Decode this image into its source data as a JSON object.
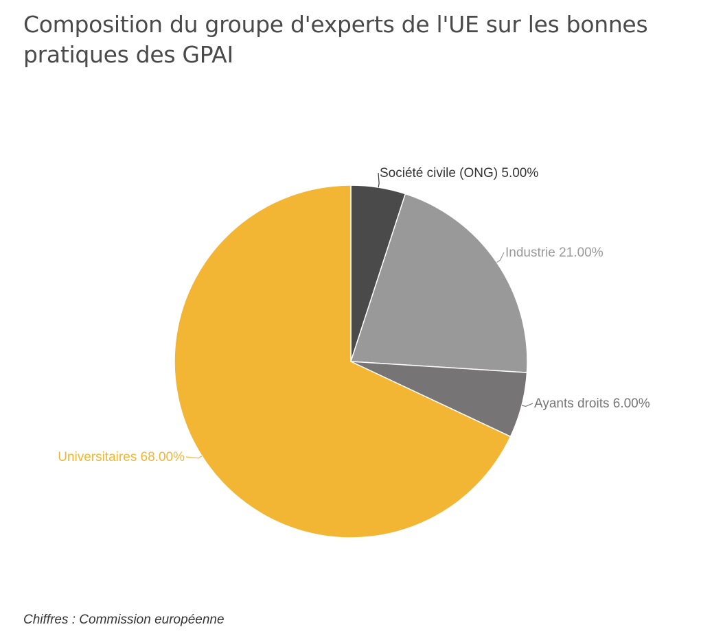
{
  "title": "Composition du groupe d'experts de l'UE sur les bonnes pratiques des GPAI",
  "source": "Chiffres : Commission européenne",
  "chart_data": {
    "type": "pie",
    "title": "Composition du groupe d'experts de l'UE sur les bonnes pratiques des GPAI",
    "slices": [
      {
        "label": "Société civile (ONG)",
        "value": 5.0,
        "display": "Société civile (ONG) 5.00%",
        "color": "#4a4a4a",
        "label_color": "#333333"
      },
      {
        "label": "Industrie",
        "value": 21.0,
        "display": "Industrie 21.00%",
        "color": "#999999",
        "label_color": "#999999"
      },
      {
        "label": "Ayants droits",
        "value": 6.0,
        "display": "Ayants droits 6.00%",
        "color": "#767474",
        "label_color": "#767474"
      },
      {
        "label": "Universitaires",
        "value": 68.0,
        "display": "Universitaires 68.00%",
        "color": "#f2b634",
        "label_color": "#f2b634"
      }
    ],
    "start_angle": "12 o'clock",
    "direction": "clockwise",
    "legend": "none"
  }
}
